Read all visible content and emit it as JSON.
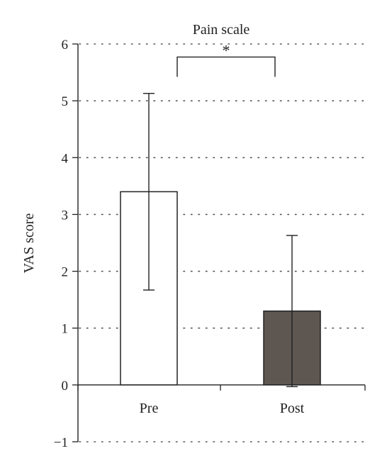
{
  "chart_data": {
    "type": "bar",
    "title": "Pain scale",
    "xlabel": "",
    "ylabel": "VAS score",
    "ylim": [
      -1,
      6
    ],
    "yticks": [
      {
        "value": -1,
        "label": "−1"
      },
      {
        "value": 0,
        "label": "0"
      },
      {
        "value": 1,
        "label": "1"
      },
      {
        "value": 2,
        "label": "2"
      },
      {
        "value": 3,
        "label": "3"
      },
      {
        "value": 4,
        "label": "4"
      },
      {
        "value": 5,
        "label": "5"
      },
      {
        "value": 6,
        "label": "6"
      }
    ],
    "grid": true,
    "categories": [
      "Pre",
      "Post"
    ],
    "values": [
      3.4,
      1.3
    ],
    "error": [
      1.73,
      1.33
    ],
    "colors": [
      "#ffffff",
      "#5e5650"
    ],
    "significance": {
      "from": 0,
      "to": 1,
      "label": "*",
      "y": 5.77
    }
  }
}
